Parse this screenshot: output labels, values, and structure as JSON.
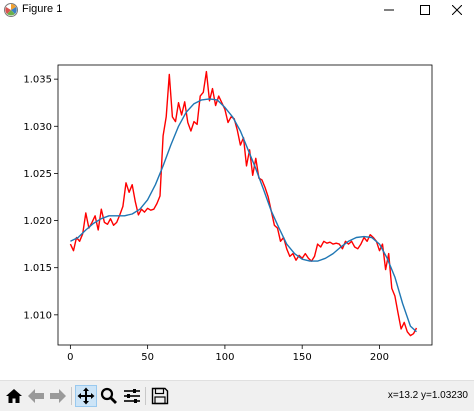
{
  "window": {
    "title": "Figure 1"
  },
  "toolbar": {
    "tools": [
      "home-icon",
      "back-icon",
      "forward-icon",
      "pan-icon",
      "zoom-icon",
      "subplots-icon",
      "save-icon"
    ],
    "coords_readout": "x=13.2 y=1.03230"
  },
  "chart_data": {
    "type": "line",
    "title": "",
    "xlabel": "",
    "ylabel": "",
    "xlim": [
      -8,
      234
    ],
    "ylim": [
      1.0068,
      1.0365
    ],
    "grid": false,
    "legend": "none",
    "xticks": [
      0,
      50,
      100,
      150,
      200
    ],
    "xtick_labels": [
      "0",
      "50",
      "100",
      "150",
      "200"
    ],
    "yticks": [
      1.01,
      1.015,
      1.02,
      1.025,
      1.03,
      1.035
    ],
    "ytick_labels": [
      "1.010",
      "1.015",
      "1.020",
      "1.025",
      "1.030",
      "1.035"
    ],
    "series": [
      {
        "color": "#ff0000",
        "x": [
          0,
          2,
          4,
          6,
          8,
          10,
          12,
          14,
          16,
          18,
          20,
          22,
          24,
          26,
          28,
          30,
          32,
          34,
          36,
          38,
          40,
          42,
          44,
          46,
          48,
          50,
          52,
          54,
          56,
          58,
          60,
          62,
          64,
          66,
          68,
          70,
          72,
          74,
          76,
          78,
          80,
          82,
          84,
          86,
          88,
          90,
          92,
          94,
          96,
          98,
          100,
          102,
          104,
          106,
          108,
          110,
          112,
          114,
          116,
          118,
          120,
          122,
          124,
          126,
          128,
          130,
          132,
          134,
          136,
          138,
          140,
          142,
          144,
          146,
          148,
          150,
          152,
          154,
          156,
          158,
          160,
          162,
          164,
          166,
          168,
          170,
          172,
          174,
          176,
          178,
          180,
          182,
          184,
          186,
          188,
          190,
          192,
          194,
          196,
          198,
          200,
          202,
          204,
          206,
          208,
          210,
          212,
          214,
          216,
          218,
          220,
          222,
          224
        ],
        "y": [
          1.0175,
          1.0168,
          1.0182,
          1.0178,
          1.0186,
          1.0208,
          1.0192,
          1.0198,
          1.0205,
          1.019,
          1.0212,
          1.0198,
          1.0196,
          1.0202,
          1.0195,
          1.0198,
          1.0206,
          1.0215,
          1.024,
          1.023,
          1.0238,
          1.022,
          1.0206,
          1.0212,
          1.0209,
          1.0213,
          1.0211,
          1.0212,
          1.0218,
          1.0226,
          1.029,
          1.031,
          1.0355,
          1.031,
          1.0305,
          1.0325,
          1.0312,
          1.0326,
          1.0304,
          1.0295,
          1.0305,
          1.0302,
          1.0332,
          1.0336,
          1.0358,
          1.0327,
          1.034,
          1.0322,
          1.0332,
          1.0325,
          1.0318,
          1.0304,
          1.031,
          1.0308,
          1.0296,
          1.028,
          1.0288,
          1.0258,
          1.0275,
          1.0248,
          1.0266,
          1.0245,
          1.0243,
          1.0235,
          1.0225,
          1.021,
          1.0195,
          1.0192,
          1.0178,
          1.0182,
          1.017,
          1.0162,
          1.0165,
          1.0158,
          1.0163,
          1.016,
          1.0165,
          1.016,
          1.0157,
          1.0162,
          1.0175,
          1.0172,
          1.0178,
          1.0176,
          1.0177,
          1.0175,
          1.0176,
          1.0175,
          1.017,
          1.0178,
          1.0175,
          1.0178,
          1.0172,
          1.017,
          1.0175,
          1.0182,
          1.0178,
          1.0185,
          1.0182,
          1.0178,
          1.0168,
          1.0175,
          1.0148,
          1.0165,
          1.0128,
          1.012,
          1.0102,
          1.0085,
          1.0092,
          1.0082,
          1.0078,
          1.008,
          1.0086
        ]
      },
      {
        "color": "#1f77b4",
        "x": [
          0,
          5,
          10,
          15,
          20,
          25,
          30,
          35,
          40,
          45,
          50,
          55,
          60,
          65,
          70,
          75,
          80,
          85,
          90,
          95,
          100,
          105,
          110,
          115,
          120,
          125,
          130,
          135,
          140,
          145,
          150,
          155,
          160,
          165,
          170,
          175,
          180,
          185,
          190,
          195,
          200,
          205,
          210,
          215,
          220,
          224
        ],
        "y": [
          1.0178,
          1.0182,
          1.019,
          1.0197,
          1.0202,
          1.0205,
          1.0205,
          1.0205,
          1.0207,
          1.0212,
          1.0222,
          1.0238,
          1.0258,
          1.028,
          1.03,
          1.0315,
          1.0324,
          1.0328,
          1.0329,
          1.0328,
          1.032,
          1.031,
          1.0295,
          1.0275,
          1.0255,
          1.0233,
          1.021,
          1.0192,
          1.0175,
          1.0165,
          1.0159,
          1.0157,
          1.0157,
          1.016,
          1.0165,
          1.0172,
          1.0178,
          1.0182,
          1.0183,
          1.0182,
          1.0175,
          1.016,
          1.014,
          1.0112,
          1.0088,
          1.0082
        ]
      }
    ]
  }
}
